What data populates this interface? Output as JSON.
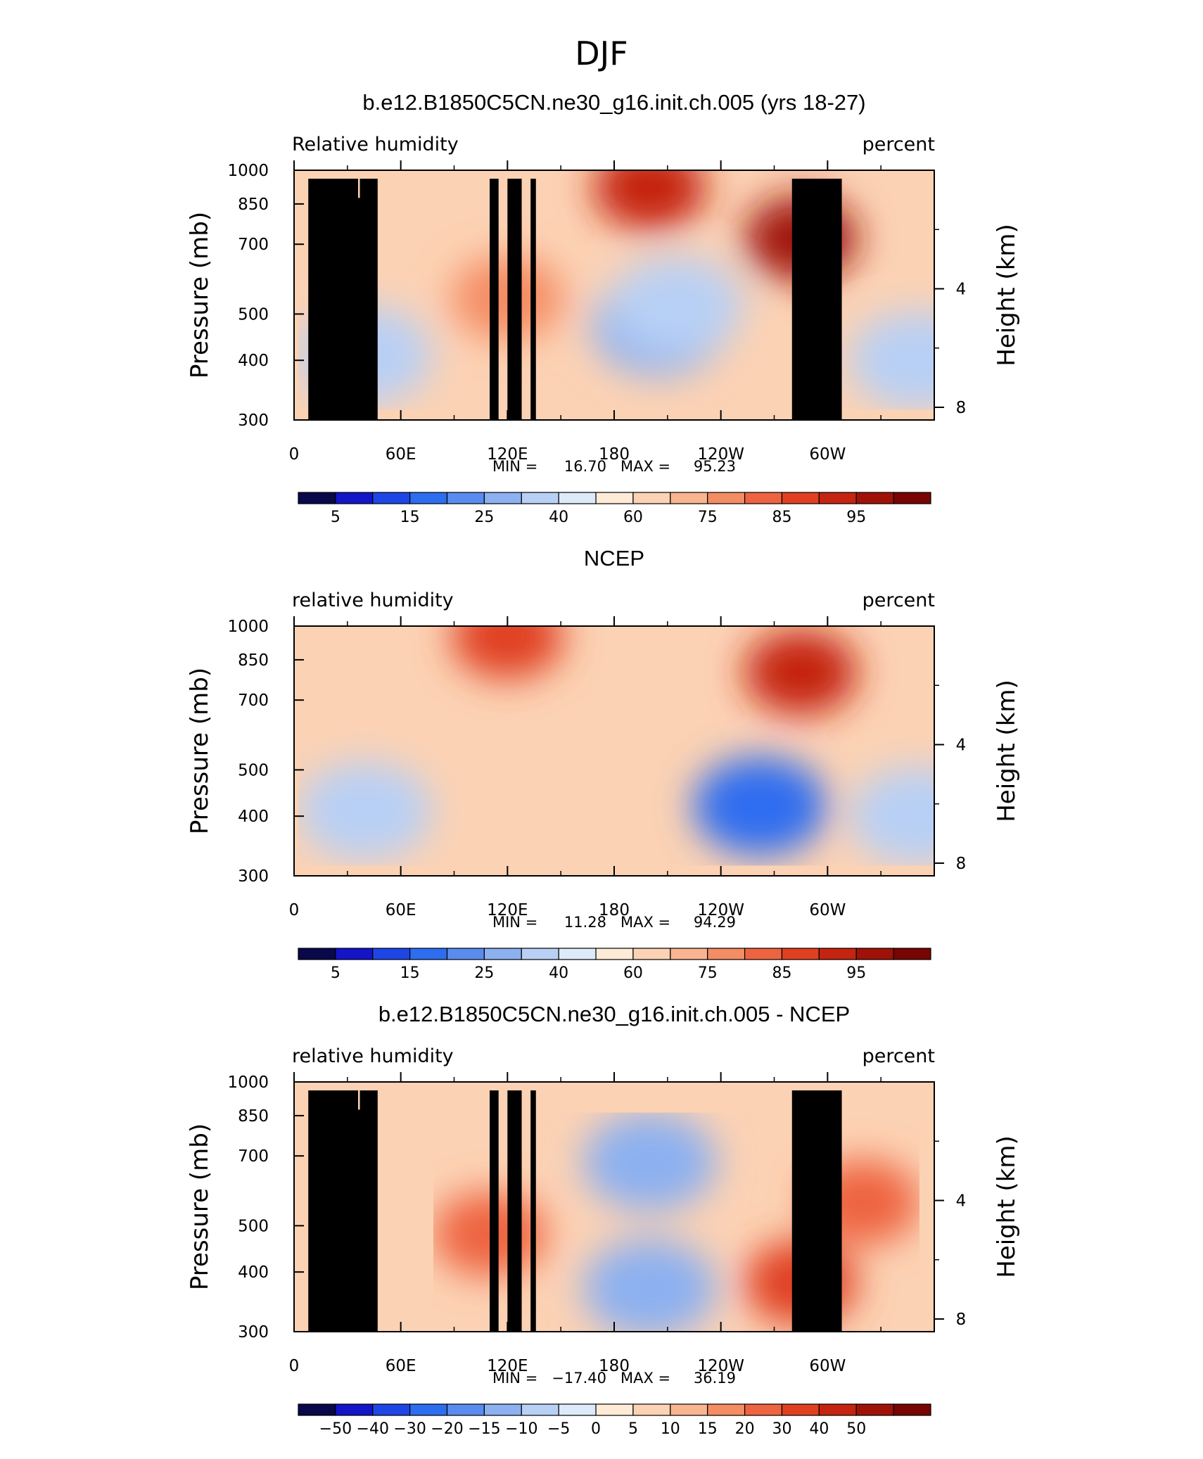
{
  "figure": {
    "title": "DJF",
    "palette_colors": [
      "#08084a",
      "#1414c8",
      "#1e46e6",
      "#2d6df0",
      "#5a8cf0",
      "#8cb0f0",
      "#b8d0f5",
      "#dceaf9",
      "#fdebd7",
      "#fcd2b4",
      "#f9b490",
      "#f48c64",
      "#ee6440",
      "#e04020",
      "#c42410",
      "#a01208",
      "#780404"
    ]
  },
  "panels": [
    {
      "title": "b.e12.B1850C5CN.ne30_g16.init.ch.005 (yrs 18-27)",
      "left_string": "Relative humidity",
      "right_string": "percent",
      "stats": {
        "min_label": "MIN =",
        "min": "16.70",
        "max_label": "MAX =",
        "max": "95.23"
      },
      "colorbar_labels": [
        "5",
        "15",
        "25",
        "40",
        "60",
        "75",
        "85",
        "95"
      ]
    },
    {
      "title": "NCEP",
      "left_string": "relative humidity",
      "right_string": "percent",
      "stats": {
        "min_label": "MIN =",
        "min": "11.28",
        "max_label": "MAX =",
        "max": "94.29"
      },
      "colorbar_labels": [
        "5",
        "15",
        "25",
        "40",
        "60",
        "75",
        "85",
        "95"
      ]
    },
    {
      "title": "b.e12.B1850C5CN.ne30_g16.init.ch.005 - NCEP",
      "left_string": "relative humidity",
      "right_string": "percent",
      "stats": {
        "min_label": "MIN =",
        "min": "−17.40",
        "max_label": "MAX =",
        "max": "36.19"
      },
      "colorbar_labels": [
        "−50",
        "−40",
        "−30",
        "−20",
        "−15",
        "−10",
        "−5",
        "0",
        "5",
        "10",
        "15",
        "20",
        "30",
        "40",
        "50"
      ]
    }
  ],
  "chart_data": [
    {
      "type": "heatmap",
      "subtype": "filled-contour",
      "xlabel": "",
      "ylabel": "Pressure (mb)",
      "y2label": "Height (km)",
      "x_ticks": [
        "0",
        "60E",
        "120E",
        "180",
        "120W",
        "60W"
      ],
      "x_tick_values": [
        0,
        60,
        120,
        180,
        240,
        300
      ],
      "xlim": [
        0,
        360
      ],
      "y_ticks": [
        "300",
        "400",
        "500",
        "700",
        "850",
        "1000"
      ],
      "y_tick_values": [
        300,
        400,
        500,
        700,
        850,
        1000
      ],
      "ylim": [
        1000,
        300
      ],
      "y_scale": "log",
      "y2_ticks": [
        "4",
        "8"
      ],
      "y2_tick_values": [
        4,
        8
      ],
      "levels": [
        5,
        10,
        15,
        20,
        25,
        30,
        40,
        50,
        60,
        65,
        75,
        80,
        85,
        90,
        95
      ],
      "min": 16.7,
      "max": 95.23,
      "features": [
        {
          "kind": "low",
          "lon": 205,
          "p": 470,
          "value": 25
        },
        {
          "kind": "low",
          "lon": 215,
          "p": 520,
          "value": 30
        },
        {
          "kind": "low",
          "lon": 40,
          "p": 410,
          "value": 30
        },
        {
          "kind": "low",
          "lon": 350,
          "p": 400,
          "value": 30
        },
        {
          "kind": "high",
          "lon": 120,
          "p": 540,
          "value": 78
        },
        {
          "kind": "high",
          "lon": 285,
          "p": 720,
          "value": 95
        },
        {
          "kind": "high",
          "lon": 200,
          "p": 920,
          "value": 92
        }
      ]
    },
    {
      "type": "heatmap",
      "subtype": "filled-contour",
      "xlabel": "",
      "ylabel": "Pressure (mb)",
      "y2label": "Height (km)",
      "x_ticks": [
        "0",
        "60E",
        "120E",
        "180",
        "120W",
        "60W"
      ],
      "x_tick_values": [
        0,
        60,
        120,
        180,
        240,
        300
      ],
      "xlim": [
        0,
        360
      ],
      "y_ticks": [
        "300",
        "400",
        "500",
        "700",
        "850",
        "1000"
      ],
      "y_tick_values": [
        300,
        400,
        500,
        700,
        850,
        1000
      ],
      "ylim": [
        1000,
        300
      ],
      "y_scale": "log",
      "y2_ticks": [
        "4",
        "8"
      ],
      "y2_tick_values": [
        4,
        8
      ],
      "levels": [
        5,
        10,
        15,
        20,
        25,
        30,
        40,
        50,
        60,
        65,
        75,
        80,
        85,
        90,
        95
      ],
      "min": 11.28,
      "max": 94.29,
      "features": [
        {
          "kind": "low",
          "lon": 262,
          "p": 420,
          "value": 18
        },
        {
          "kind": "low",
          "lon": 40,
          "p": 410,
          "value": 35
        },
        {
          "kind": "low",
          "lon": 350,
          "p": 400,
          "value": 33
        },
        {
          "kind": "high",
          "lon": 285,
          "p": 800,
          "value": 90
        },
        {
          "kind": "high",
          "lon": 120,
          "p": 950,
          "value": 85
        }
      ]
    },
    {
      "type": "heatmap",
      "subtype": "filled-contour",
      "xlabel": "",
      "ylabel": "Pressure (mb)",
      "y2label": "Height (km)",
      "x_ticks": [
        "0",
        "60E",
        "120E",
        "180",
        "120W",
        "60W"
      ],
      "x_tick_values": [
        0,
        60,
        120,
        180,
        240,
        300
      ],
      "xlim": [
        0,
        360
      ],
      "y_ticks": [
        "300",
        "400",
        "500",
        "700",
        "850",
        "1000"
      ],
      "y_tick_values": [
        300,
        400,
        500,
        700,
        850,
        1000
      ],
      "ylim": [
        1000,
        300
      ],
      "y_scale": "log",
      "y2_ticks": [
        "4",
        "8"
      ],
      "y2_tick_values": [
        4,
        8
      ],
      "levels": [
        -50,
        -40,
        -30,
        -20,
        -15,
        -10,
        -5,
        0,
        5,
        10,
        15,
        20,
        30,
        40,
        50
      ],
      "min": -17.4,
      "max": 36.19,
      "features": [
        {
          "kind": "high",
          "lon": 110,
          "p": 480,
          "value": 25
        },
        {
          "kind": "high",
          "lon": 285,
          "p": 380,
          "value": 35
        },
        {
          "kind": "high",
          "lon": 320,
          "p": 560,
          "value": 25
        },
        {
          "kind": "low",
          "lon": 200,
          "p": 370,
          "value": -15
        },
        {
          "kind": "low",
          "lon": 200,
          "p": 680,
          "value": -12
        }
      ]
    }
  ]
}
